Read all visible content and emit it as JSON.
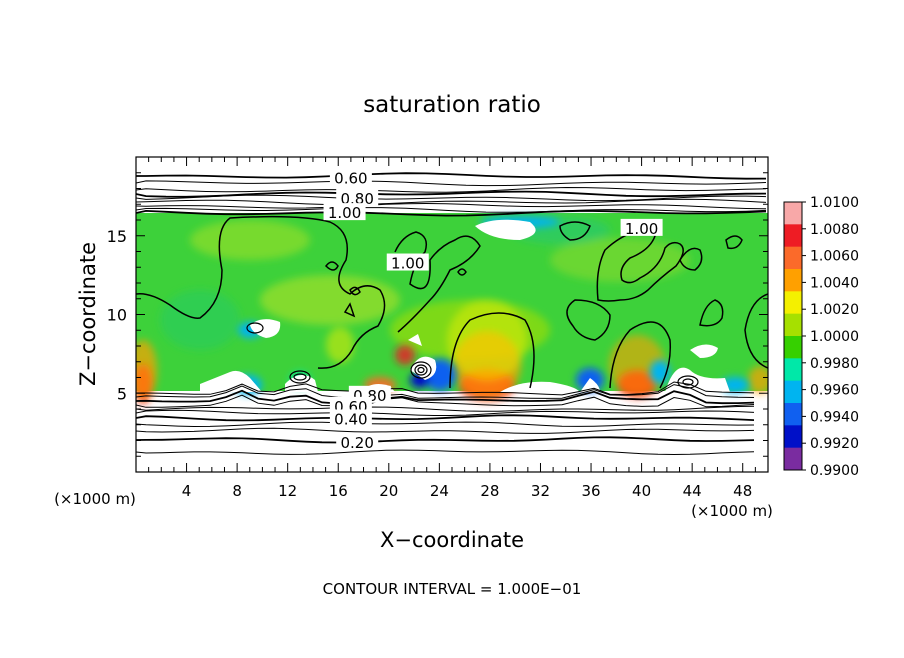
{
  "chart_data": {
    "type": "heatmap",
    "title": "saturation ratio",
    "xlabel": "X−coordinate",
    "ylabel": "Z−coordinate",
    "x_unit_label": "(×1000 m)",
    "z_unit_label": "(×1000 m)",
    "footnote": "CONTOUR INTERVAL = 1.000E−01",
    "xlim": [
      0,
      50
    ],
    "ylim": [
      0,
      20
    ],
    "x_ticks": [
      4,
      8,
      12,
      16,
      20,
      24,
      28,
      32,
      36,
      40,
      44,
      48
    ],
    "x_tick_labels": [
      "4",
      "8",
      "12",
      "16",
      "20",
      "24",
      "28",
      "32",
      "36",
      "40",
      "44",
      "48"
    ],
    "y_ticks": [
      5,
      10,
      15
    ],
    "y_tick_labels": [
      "5",
      "10",
      "15"
    ],
    "colorbar": {
      "range": [
        0.99,
        1.01
      ],
      "tick_labels": [
        "1.0100",
        "1.0080",
        "1.0060",
        "1.0040",
        "1.0020",
        "1.0000",
        "0.9980",
        "0.9960",
        "0.9940",
        "0.9920",
        "0.9900"
      ],
      "colors": [
        "#f8a8a8",
        "#ee1c24",
        "#fb6a2a",
        "#ffa000",
        "#f4f000",
        "#a6e000",
        "#36d000",
        "#00e8a8",
        "#00b4f0",
        "#1060f0",
        "#0010c8",
        "#7a2ca0"
      ]
    },
    "contour_labels": [
      {
        "text": "0.60",
        "x": 17.0,
        "z": 18.7
      },
      {
        "text": "0.80",
        "x": 17.5,
        "z": 17.4
      },
      {
        "text": "1.00",
        "x": 16.5,
        "z": 16.5
      },
      {
        "text": "1.00",
        "x": 21.5,
        "z": 13.3
      },
      {
        "text": "1.00",
        "x": 40.0,
        "z": 15.5
      },
      {
        "text": "0.80",
        "x": 18.5,
        "z": 4.9
      },
      {
        "text": "0.60",
        "x": 17.0,
        "z": 4.2
      },
      {
        "text": "0.40",
        "x": 17.0,
        "z": 3.4
      },
      {
        "text": "0.20",
        "x": 17.5,
        "z": 1.9
      }
    ],
    "cloud_layer": {
      "z_bottom": 5.0,
      "z_top": 16.4,
      "mean_value": 1.0
    }
  }
}
